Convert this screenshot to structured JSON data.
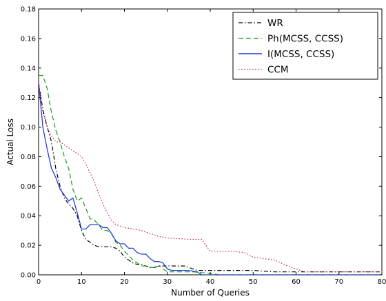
{
  "chart_data": {
    "type": "line",
    "title": "",
    "xlabel": "Number of Queries",
    "ylabel": "Actual Loss",
    "xlim": [
      0,
      80
    ],
    "ylim": [
      0,
      0.18
    ],
    "x_ticks": [
      0,
      10,
      20,
      30,
      40,
      50,
      60,
      70,
      80
    ],
    "y_ticks": [
      0.0,
      0.02,
      0.04,
      0.06,
      0.08,
      0.1,
      0.12,
      0.14,
      0.16,
      0.18
    ],
    "x_tick_labels": [
      "0",
      "10",
      "20",
      "30",
      "40",
      "50",
      "60",
      "70",
      "80"
    ],
    "y_tick_labels": [
      "0.00",
      "0.02",
      "0.04",
      "0.06",
      "0.08",
      "0.10",
      "0.12",
      "0.14",
      "0.16",
      "0.18"
    ],
    "grid": false,
    "legend_position": "top-right",
    "series": [
      {
        "name": "WR",
        "color": "#000000",
        "style": "dashdot",
        "points": [
          [
            0,
            0.13
          ],
          [
            1,
            0.112
          ],
          [
            2,
            0.1
          ],
          [
            3,
            0.09
          ],
          [
            4,
            0.072
          ],
          [
            5,
            0.06
          ],
          [
            6,
            0.052
          ],
          [
            7,
            0.048
          ],
          [
            8,
            0.045
          ],
          [
            9,
            0.04
          ],
          [
            10,
            0.03
          ],
          [
            11,
            0.024
          ],
          [
            12,
            0.022
          ],
          [
            13,
            0.02
          ],
          [
            14,
            0.019
          ],
          [
            15,
            0.019
          ],
          [
            16,
            0.019
          ],
          [
            17,
            0.019
          ],
          [
            18,
            0.018
          ],
          [
            19,
            0.016
          ],
          [
            20,
            0.012
          ],
          [
            21,
            0.01
          ],
          [
            22,
            0.008
          ],
          [
            23,
            0.007
          ],
          [
            24,
            0.007
          ],
          [
            25,
            0.006
          ],
          [
            26,
            0.005
          ],
          [
            27,
            0.005
          ],
          [
            28,
            0.006
          ],
          [
            29,
            0.006
          ],
          [
            30,
            0.006
          ],
          [
            31,
            0.006
          ],
          [
            32,
            0.006
          ],
          [
            33,
            0.006
          ],
          [
            34,
            0.006
          ],
          [
            35,
            0.005
          ],
          [
            36,
            0.004
          ],
          [
            37,
            0.003
          ],
          [
            38,
            0.003
          ],
          [
            40,
            0.003
          ],
          [
            45,
            0.003
          ],
          [
            50,
            0.003
          ],
          [
            55,
            0.002
          ],
          [
            60,
            0.002
          ],
          [
            65,
            0.002
          ],
          [
            70,
            0.002
          ],
          [
            75,
            0.002
          ],
          [
            80,
            0.002
          ]
        ]
      },
      {
        "name": "Ph(MCSS, CCSS)",
        "color": "#1a9c1a",
        "style": "dashed",
        "points": [
          [
            0,
            0.135
          ],
          [
            1,
            0.135
          ],
          [
            2,
            0.126
          ],
          [
            3,
            0.11
          ],
          [
            4,
            0.098
          ],
          [
            5,
            0.09
          ],
          [
            6,
            0.08
          ],
          [
            7,
            0.072
          ],
          [
            8,
            0.058
          ],
          [
            9,
            0.05
          ],
          [
            10,
            0.052
          ],
          [
            11,
            0.045
          ],
          [
            12,
            0.038
          ],
          [
            13,
            0.037
          ],
          [
            14,
            0.034
          ],
          [
            15,
            0.03
          ],
          [
            16,
            0.03
          ],
          [
            17,
            0.028
          ],
          [
            18,
            0.022
          ],
          [
            19,
            0.02
          ],
          [
            20,
            0.016
          ],
          [
            21,
            0.013
          ],
          [
            22,
            0.01
          ],
          [
            23,
            0.008
          ],
          [
            24,
            0.006
          ],
          [
            25,
            0.006
          ],
          [
            26,
            0.005
          ],
          [
            27,
            0.005
          ],
          [
            28,
            0.006
          ],
          [
            29,
            0.004
          ],
          [
            30,
            0.002
          ],
          [
            32,
            0.002
          ],
          [
            34,
            0.002
          ],
          [
            36,
            0.002
          ],
          [
            38,
            0.0015
          ],
          [
            40,
            0.001
          ],
          [
            42,
            0
          ],
          [
            50,
            0
          ],
          [
            60,
            0
          ],
          [
            70,
            0
          ],
          [
            80,
            0
          ]
        ]
      },
      {
        "name": "I(MCSS, CCSS)",
        "color": "#1f3fd6",
        "style": "solid",
        "points": [
          [
            0,
            0.13
          ],
          [
            1,
            0.1
          ],
          [
            2,
            0.085
          ],
          [
            3,
            0.072
          ],
          [
            4,
            0.066
          ],
          [
            5,
            0.058
          ],
          [
            6,
            0.054
          ],
          [
            7,
            0.05
          ],
          [
            8,
            0.052
          ],
          [
            9,
            0.042
          ],
          [
            10,
            0.031
          ],
          [
            11,
            0.031
          ],
          [
            12,
            0.034
          ],
          [
            13,
            0.034
          ],
          [
            14,
            0.034
          ],
          [
            15,
            0.032
          ],
          [
            16,
            0.032
          ],
          [
            17,
            0.028
          ],
          [
            18,
            0.023
          ],
          [
            19,
            0.021
          ],
          [
            20,
            0.021
          ],
          [
            21,
            0.018
          ],
          [
            22,
            0.018
          ],
          [
            23,
            0.015
          ],
          [
            24,
            0.014
          ],
          [
            25,
            0.014
          ],
          [
            26,
            0.011
          ],
          [
            27,
            0.009
          ],
          [
            28,
            0.009
          ],
          [
            29,
            0.008
          ],
          [
            30,
            0.004
          ],
          [
            31,
            0.003
          ],
          [
            33,
            0.003
          ],
          [
            35,
            0.003
          ],
          [
            37,
            0.002
          ],
          [
            38,
            0
          ],
          [
            40,
            0
          ],
          [
            50,
            0
          ],
          [
            60,
            0
          ],
          [
            70,
            0
          ],
          [
            80,
            0
          ]
        ]
      },
      {
        "name": "CCM",
        "color": "#cc2244",
        "style": "dotted",
        "points": [
          [
            0,
            0.13
          ],
          [
            1,
            0.11
          ],
          [
            2,
            0.1
          ],
          [
            3,
            0.094
          ],
          [
            4,
            0.09
          ],
          [
            5,
            0.09
          ],
          [
            6,
            0.088
          ],
          [
            7,
            0.086
          ],
          [
            8,
            0.084
          ],
          [
            9,
            0.082
          ],
          [
            10,
            0.08
          ],
          [
            11,
            0.075
          ],
          [
            12,
            0.069
          ],
          [
            13,
            0.063
          ],
          [
            14,
            0.055
          ],
          [
            15,
            0.048
          ],
          [
            16,
            0.042
          ],
          [
            17,
            0.037
          ],
          [
            18,
            0.034
          ],
          [
            19,
            0.033
          ],
          [
            20,
            0.032
          ],
          [
            22,
            0.031
          ],
          [
            24,
            0.03
          ],
          [
            26,
            0.028
          ],
          [
            28,
            0.026
          ],
          [
            30,
            0.025
          ],
          [
            35,
            0.024
          ],
          [
            38,
            0.024
          ],
          [
            39,
            0.02
          ],
          [
            40,
            0.016
          ],
          [
            45,
            0.016
          ],
          [
            48,
            0.015
          ],
          [
            50,
            0.012
          ],
          [
            55,
            0.01
          ],
          [
            58,
            0.006
          ],
          [
            60,
            0.004
          ],
          [
            62,
            0.002
          ],
          [
            65,
            0.002
          ],
          [
            70,
            0.002
          ],
          [
            75,
            0.002
          ],
          [
            80,
            0.002
          ]
        ]
      }
    ]
  }
}
